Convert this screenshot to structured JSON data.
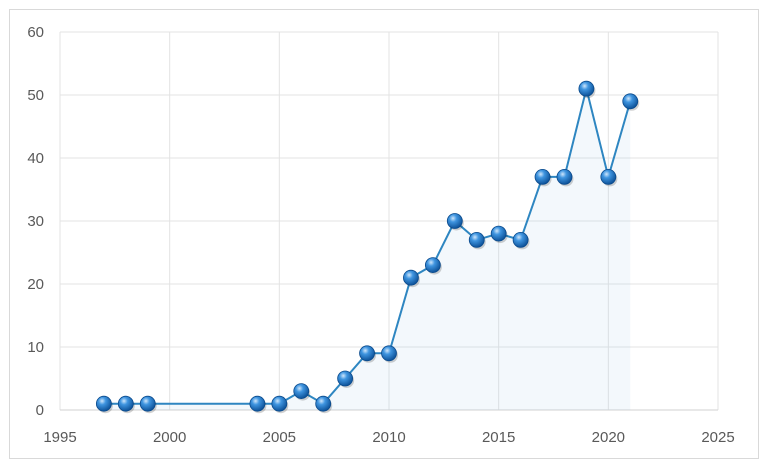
{
  "chart_data": {
    "type": "scatter",
    "title": "",
    "xlabel": "",
    "ylabel": "",
    "xlim": [
      1995,
      2025
    ],
    "ylim": [
      0,
      60
    ],
    "xticks": [
      1995,
      2000,
      2005,
      2010,
      2015,
      2020,
      2025
    ],
    "yticks": [
      0,
      10,
      20,
      30,
      40,
      50,
      60
    ],
    "grid": true,
    "legend": "none",
    "marker_color": "#1f6fbf",
    "line_color": "#2e86c1",
    "series": [
      {
        "x": [
          1997,
          1998,
          1999,
          2004,
          2005,
          2006,
          2007,
          2008,
          2009,
          2010,
          2011,
          2012,
          2013,
          2014,
          2015,
          2016,
          2017,
          2018,
          2019,
          2020,
          2021
        ],
        "y": [
          1,
          1,
          1,
          1,
          1,
          3,
          1,
          5,
          9,
          9,
          21,
          23,
          30,
          27,
          28,
          27,
          37,
          37,
          51,
          37,
          49
        ]
      }
    ]
  }
}
